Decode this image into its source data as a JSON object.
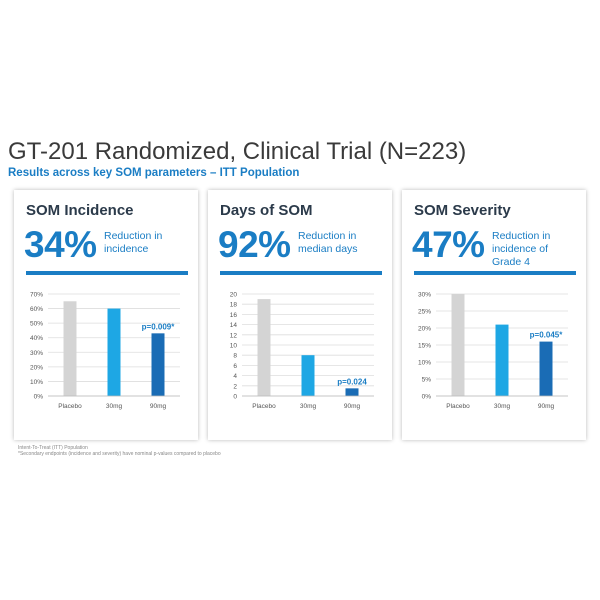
{
  "title": "GT-201 Randomized, Clinical Trial (N=223)",
  "subtitle": "Results across key SOM parameters – ITT Population",
  "footnotes": [
    "Intent-To-Treat (ITT) Population",
    "*Secondary endpoints (incidence and severity) have nominal p-values compared to placebo"
  ],
  "colors": {
    "accent": "#1a7dc4",
    "placebo": "#d4d4d4",
    "mg30": "#1ea7e4",
    "mg90": "#1a6cb5"
  },
  "cards": [
    {
      "heading": "SOM Incidence",
      "big_stat": "34%",
      "desc": [
        "Reduction in",
        "incidence"
      ]
    },
    {
      "heading": "Days of SOM",
      "big_stat": "92%",
      "desc": [
        "Reduction in",
        "median days"
      ]
    },
    {
      "heading": "SOM Severity",
      "big_stat": "47%",
      "desc": [
        "Reduction in",
        "incidence of",
        "Grade 4"
      ]
    }
  ],
  "chart_data": [
    {
      "type": "bar",
      "categories": [
        "Placebo",
        "30mg",
        "90mg"
      ],
      "values": [
        65,
        60,
        43
      ],
      "ylim": [
        0,
        70
      ],
      "yticks": [
        0,
        10,
        20,
        30,
        40,
        50,
        60,
        70
      ],
      "ytick_labels": [
        "0%",
        "10%",
        "20%",
        "30%",
        "40%",
        "50%",
        "60%",
        "70%"
      ],
      "annotation": {
        "text": "p=0.009*",
        "category": "90mg"
      },
      "grid": true
    },
    {
      "type": "bar",
      "categories": [
        "Placebo",
        "30mg",
        "90mg"
      ],
      "values": [
        19,
        8,
        1.5
      ],
      "ylim": [
        0,
        20
      ],
      "yticks": [
        0,
        2,
        4,
        6,
        8,
        10,
        12,
        14,
        16,
        18,
        20
      ],
      "ytick_labels": [
        "0",
        "2",
        "4",
        "6",
        "8",
        "10",
        "12",
        "14",
        "16",
        "18",
        "20"
      ],
      "annotation": {
        "text": "p=0.024",
        "category": "90mg"
      },
      "grid": true
    },
    {
      "type": "bar",
      "categories": [
        "Placebo",
        "30mg",
        "90mg"
      ],
      "values": [
        30,
        21,
        16
      ],
      "ylim": [
        0,
        30
      ],
      "yticks": [
        0,
        5,
        10,
        15,
        20,
        25,
        30
      ],
      "ytick_labels": [
        "0%",
        "5%",
        "10%",
        "15%",
        "20%",
        "25%",
        "30%"
      ],
      "annotation": {
        "text": "p=0.045*",
        "category": "90mg"
      },
      "grid": true
    }
  ]
}
